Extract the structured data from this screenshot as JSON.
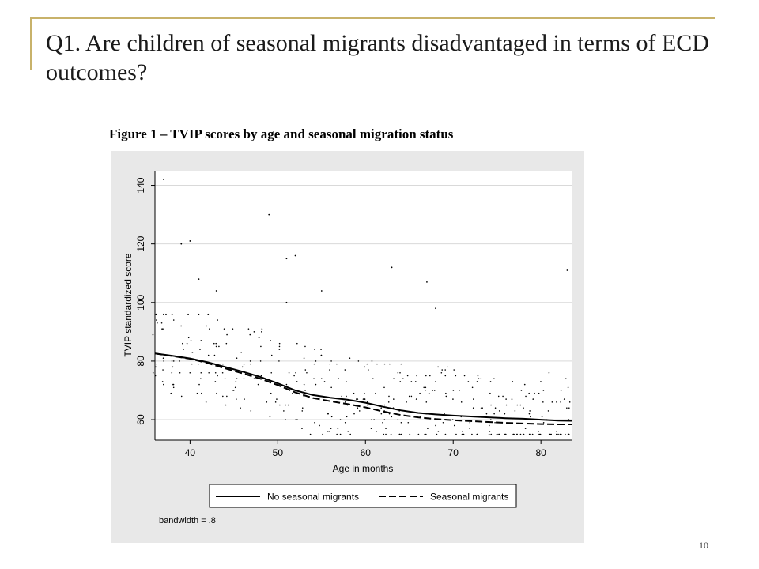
{
  "slide": {
    "title": "Q1. Are children of seasonal migrants disadvantaged in terms of ECD outcomes?",
    "page_number": "10",
    "accent_color": "#c8b26a"
  },
  "figure": {
    "caption": "Figure 1 – TVIP scores by age and seasonal migration status",
    "note": "bandwidth = .8"
  },
  "chart_data": {
    "type": "scatter",
    "xlabel": "Age in months",
    "ylabel": "TVIP standardized score",
    "xlim": [
      36,
      83.5
    ],
    "ylim": [
      53,
      145
    ],
    "xticks": [
      40,
      50,
      60,
      70,
      80
    ],
    "yticks": [
      60,
      80,
      100,
      120,
      140
    ],
    "grid": true,
    "legend_position": "bottom",
    "series": [
      {
        "name": "No seasonal migrants",
        "style": "solid",
        "line": [
          [
            36,
            82.6
          ],
          [
            38,
            81.8
          ],
          [
            40,
            80.9
          ],
          [
            42,
            79.6
          ],
          [
            44,
            78
          ],
          [
            46,
            76.4
          ],
          [
            48,
            74.6
          ],
          [
            50,
            72.4
          ],
          [
            52,
            70
          ],
          [
            54,
            68.4
          ],
          [
            56,
            67.5
          ],
          [
            58,
            66.8
          ],
          [
            60,
            65.8
          ],
          [
            62,
            64.4
          ],
          [
            64,
            63.2
          ],
          [
            66,
            62.3
          ],
          [
            68,
            61.8
          ],
          [
            70,
            61.4
          ],
          [
            72,
            61.1
          ],
          [
            74,
            60.8
          ],
          [
            76,
            60.5
          ],
          [
            78,
            60.3
          ],
          [
            80,
            60
          ],
          [
            82,
            59.7
          ],
          [
            83.5,
            59.6
          ]
        ]
      },
      {
        "name": "Seasonal migrants",
        "style": "dashed",
        "line": [
          [
            36,
            82.6
          ],
          [
            38,
            81.7
          ],
          [
            40,
            80.8
          ],
          [
            42,
            79.3
          ],
          [
            44,
            77.5
          ],
          [
            46,
            75.8
          ],
          [
            48,
            74
          ],
          [
            50,
            71.8
          ],
          [
            52,
            69.3
          ],
          [
            54,
            67.4
          ],
          [
            56,
            66.3
          ],
          [
            58,
            65.3
          ],
          [
            60,
            64.2
          ],
          [
            62,
            62.8
          ],
          [
            64,
            61.6
          ],
          [
            66,
            60.8
          ],
          [
            68,
            60.2
          ],
          [
            70,
            59.8
          ],
          [
            72,
            59.5
          ],
          [
            74,
            59.2
          ],
          [
            76,
            58.9
          ],
          [
            78,
            58.7
          ],
          [
            80,
            58.5
          ],
          [
            82,
            58.4
          ],
          [
            83.5,
            58.4
          ]
        ]
      }
    ],
    "outliers": [
      [
        37,
        142
      ],
      [
        39,
        120
      ],
      [
        40,
        121
      ],
      [
        41,
        108
      ],
      [
        43,
        104
      ],
      [
        49,
        130
      ],
      [
        51,
        115
      ],
      [
        51,
        100
      ],
      [
        52,
        116
      ],
      [
        55,
        104
      ],
      [
        63,
        112
      ],
      [
        67,
        107
      ],
      [
        68,
        98
      ],
      [
        83,
        111
      ]
    ],
    "colors": {
      "background": "#e8e8e8",
      "plot": "#ffffff",
      "grid": "#d9d9d9",
      "marks": "#000000"
    }
  }
}
